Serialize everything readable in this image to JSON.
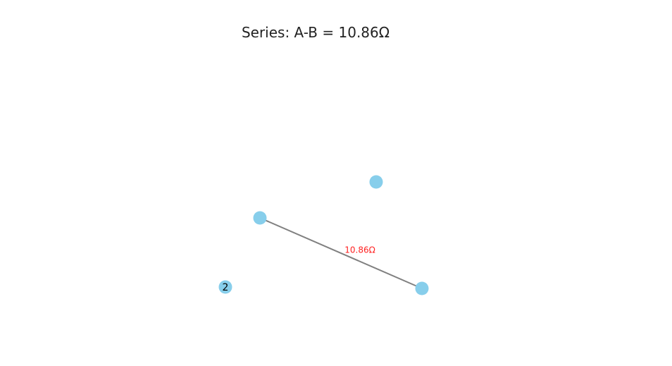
{
  "title": "Series: A-B = 10.86Ω",
  "colors": {
    "node": "#87ceeb",
    "edge": "#808080",
    "edge_label": "#ff2222",
    "node_label": "#000000"
  },
  "nodes": [
    {
      "id": "n1",
      "label": ""
    },
    {
      "id": "n2",
      "label": ""
    },
    {
      "id": "n3",
      "label": ""
    },
    {
      "id": "n4",
      "label": "2"
    }
  ],
  "edges": [
    {
      "from": "n2",
      "to": "n3",
      "label": "10.86Ω"
    }
  ]
}
